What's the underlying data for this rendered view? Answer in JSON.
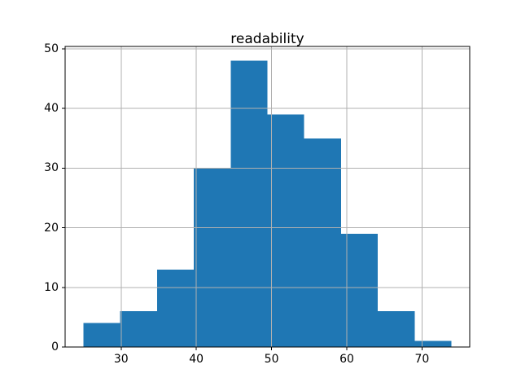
{
  "figure": {
    "background": "#ffffff"
  },
  "chart_data": {
    "type": "histogram",
    "title": "readability",
    "bin_edges": [
      25.0,
      29.89,
      34.78,
      39.67,
      44.56,
      49.45,
      54.34,
      59.23,
      64.12,
      69.01,
      73.9
    ],
    "values": [
      4,
      6,
      13,
      30,
      48,
      39,
      35,
      19,
      6,
      1
    ],
    "xticks": [
      30,
      40,
      50,
      60,
      70
    ],
    "yticks": [
      0,
      10,
      20,
      30,
      40,
      50
    ],
    "xtick_labels": [
      "30",
      "40",
      "50",
      "60",
      "70"
    ],
    "ytick_labels": [
      "0",
      "10",
      "20",
      "30",
      "40",
      "50"
    ],
    "xlim": [
      22.56,
      76.34
    ],
    "ylim": [
      0,
      50.4
    ],
    "grid": true,
    "grid_over_bars": true,
    "legend": "none",
    "xlabel": "",
    "ylabel": "",
    "bar_color": "#1f77b4",
    "grid_color": "#b0b0b0",
    "spine_color": "#000000",
    "tick_color": "#000000",
    "tick_label_color": "#000000"
  }
}
